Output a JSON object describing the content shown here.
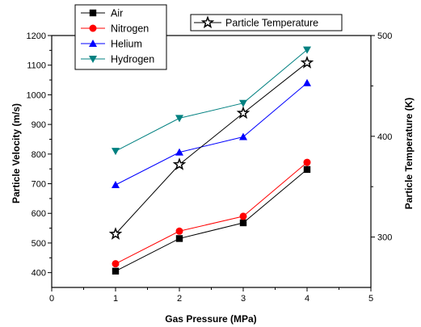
{
  "chart_data": {
    "type": "line",
    "x": [
      1,
      2,
      3,
      4
    ],
    "xlabel": "Gas Pressure (MPa)",
    "ylabel": "Particle Velocity (m/s)",
    "y2label": "Particle Temperature (K)",
    "xlim": [
      0,
      5
    ],
    "ylim": [
      350,
      1200
    ],
    "y2lim": [
      250,
      500
    ],
    "xticks": [
      "0",
      "1",
      "2",
      "3",
      "4",
      "5"
    ],
    "yticks": [
      "400",
      "500",
      "600",
      "700",
      "800",
      "900",
      "1000",
      "1100",
      "1200"
    ],
    "y2ticks": [
      "300",
      "400",
      "500"
    ],
    "grid": false,
    "legend_position": "top-left",
    "legend2_position": "top-right",
    "series": [
      {
        "name": "Air",
        "axis": "left",
        "color": "#000000",
        "marker": "square",
        "values": [
          405,
          515,
          568,
          748
        ]
      },
      {
        "name": "Nitrogen",
        "axis": "left",
        "color": "#ff0000",
        "marker": "circle",
        "values": [
          430,
          540,
          590,
          772
        ]
      },
      {
        "name": "Helium",
        "axis": "left",
        "color": "#0000ff",
        "marker": "triangle-up",
        "values": [
          696,
          806,
          858,
          1040
        ]
      },
      {
        "name": "Hydrogen",
        "axis": "left",
        "color": "#008080",
        "marker": "triangle-down",
        "values": [
          810,
          921,
          972,
          1152
        ]
      },
      {
        "name": "Particle Temperature",
        "axis": "right",
        "color": "#000000",
        "marker": "star",
        "values": [
          303,
          372,
          423,
          473
        ]
      }
    ]
  }
}
